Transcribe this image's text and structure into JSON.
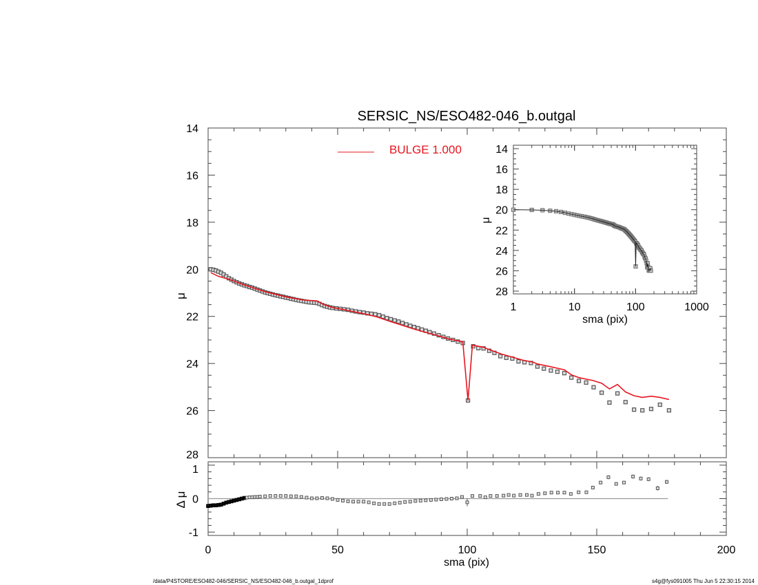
{
  "footer": {
    "left": "/data/P4STORE/ESO482-046/SERSIC_NS/ESO482-046_b.outgal_1dprof",
    "right": "s4g@fys091005  Thu Jun  5 22:30:15 2014"
  },
  "chart_data": [
    {
      "id": "main",
      "type": "scatter",
      "title": "SERSIC_NS/ESO482-046_b.outgal",
      "xlabel": "",
      "ylabel": "μ",
      "xlim": [
        0,
        200
      ],
      "ylim": [
        14,
        28
      ],
      "y_inverted": true,
      "xticks": [
        0,
        50,
        100,
        150,
        200
      ],
      "yticks": [
        14,
        16,
        18,
        20,
        22,
        24,
        26,
        28
      ],
      "legend": {
        "position": "top-center",
        "entries": [
          {
            "label": "BULGE  1.000",
            "color": "#e8141e"
          }
        ]
      },
      "colors": {
        "data": "#555555",
        "model": "#e8141e"
      },
      "series": [
        {
          "kind": "observed-points",
          "points": [
            [
              1,
              20.0
            ],
            [
              2,
              20.02
            ],
            [
              3,
              20.05
            ],
            [
              4,
              20.1
            ],
            [
              5,
              20.15
            ],
            [
              6,
              20.22
            ],
            [
              7,
              20.3
            ],
            [
              8,
              20.38
            ],
            [
              9,
              20.44
            ],
            [
              10,
              20.5
            ],
            [
              11,
              20.55
            ],
            [
              12,
              20.6
            ],
            [
              13,
              20.64
            ],
            [
              14,
              20.68
            ],
            [
              15,
              20.71
            ],
            [
              16,
              20.75
            ],
            [
              17,
              20.78
            ],
            [
              18,
              20.82
            ],
            [
              19,
              20.86
            ],
            [
              20,
              20.9
            ],
            [
              21,
              20.94
            ],
            [
              22,
              20.98
            ],
            [
              23,
              21.01
            ],
            [
              24,
              21.04
            ],
            [
              25,
              21.07
            ],
            [
              26,
              21.1
            ],
            [
              27,
              21.12
            ],
            [
              28,
              21.15
            ],
            [
              29,
              21.17
            ],
            [
              30,
              21.2
            ],
            [
              31,
              21.22
            ],
            [
              32,
              21.25
            ],
            [
              33,
              21.27
            ],
            [
              34,
              21.3
            ],
            [
              35,
              21.32
            ],
            [
              36,
              21.34
            ],
            [
              37,
              21.36
            ],
            [
              38,
              21.38
            ],
            [
              39,
              21.4
            ],
            [
              40,
              21.41
            ],
            [
              41,
              21.42
            ],
            [
              42,
              21.43
            ],
            [
              43,
              21.47
            ],
            [
              44,
              21.52
            ],
            [
              45,
              21.56
            ],
            [
              46,
              21.59
            ],
            [
              47,
              21.62
            ],
            [
              48,
              21.64
            ],
            [
              49.5,
              21.66
            ],
            [
              51,
              21.68
            ],
            [
              52.5,
              21.7
            ],
            [
              54,
              21.72
            ],
            [
              55.5,
              21.76
            ],
            [
              57,
              21.79
            ],
            [
              58.5,
              21.82
            ],
            [
              60,
              21.84
            ],
            [
              61.5,
              21.87
            ],
            [
              63,
              21.89
            ],
            [
              64.5,
              21.91
            ],
            [
              66,
              21.95
            ],
            [
              67.5,
              22.01
            ],
            [
              69,
              22.07
            ],
            [
              70.5,
              22.12
            ],
            [
              72,
              22.17
            ],
            [
              73.5,
              22.22
            ],
            [
              75,
              22.28
            ],
            [
              76.5,
              22.34
            ],
            [
              78,
              22.4
            ],
            [
              79.5,
              22.45
            ],
            [
              81,
              22.5
            ],
            [
              82.5,
              22.56
            ],
            [
              84,
              22.61
            ],
            [
              85.5,
              22.67
            ],
            [
              87.2,
              22.73
            ],
            [
              89,
              22.8
            ],
            [
              90.8,
              22.87
            ],
            [
              92.6,
              22.94
            ],
            [
              94.5,
              23.0
            ],
            [
              96.4,
              23.07
            ],
            [
              98.3,
              23.13
            ],
            [
              100.3,
              25.57
            ],
            [
              102.3,
              23.27
            ],
            [
              104.3,
              23.35
            ],
            [
              106.3,
              23.36
            ],
            [
              108.5,
              23.46
            ],
            [
              110.5,
              23.55
            ],
            [
              112.8,
              23.69
            ],
            [
              115.1,
              23.76
            ],
            [
              117.4,
              23.79
            ],
            [
              119.8,
              23.91
            ],
            [
              122.1,
              23.95
            ],
            [
              124.6,
              23.98
            ],
            [
              127.1,
              24.13
            ],
            [
              129.6,
              24.22
            ],
            [
              132.3,
              24.3
            ],
            [
              134.8,
              24.35
            ],
            [
              137.5,
              24.41
            ],
            [
              140.2,
              24.6
            ],
            [
              143.1,
              24.74
            ],
            [
              145.9,
              24.81
            ],
            [
              148.8,
              25.01
            ],
            [
              151.9,
              25.24
            ],
            [
              154.9,
              25.66
            ],
            [
              158,
              25.27
            ],
            [
              161.1,
              25.64
            ],
            [
              164.4,
              25.96
            ],
            [
              167.6,
              25.99
            ],
            [
              171,
              25.93
            ],
            [
              174.4,
              25.75
            ],
            [
              177.9,
              25.99
            ]
          ]
        },
        {
          "name": "BULGE  1.000",
          "kind": "model-line",
          "points": [
            [
              1,
              20.14
            ],
            [
              4,
              20.3
            ],
            [
              8.3,
              20.43
            ],
            [
              12.8,
              20.62
            ],
            [
              17.2,
              20.78
            ],
            [
              21.6,
              20.94
            ],
            [
              26.1,
              21.06
            ],
            [
              30.5,
              21.18
            ],
            [
              36.6,
              21.3
            ],
            [
              40,
              21.33
            ],
            [
              42,
              21.34
            ],
            [
              44.7,
              21.5
            ],
            [
              48,
              21.62
            ],
            [
              52.7,
              21.72
            ],
            [
              57,
              21.82
            ],
            [
              61.5,
              21.92
            ],
            [
              65.1,
              22.02
            ],
            [
              70.4,
              22.22
            ],
            [
              75,
              22.38
            ],
            [
              79.3,
              22.53
            ],
            [
              84,
              22.68
            ],
            [
              87.7,
              22.79
            ],
            [
              93,
              22.96
            ],
            [
              98.3,
              23.08
            ],
            [
              100.3,
              25.57
            ],
            [
              102,
              23.22
            ],
            [
              106.3,
              23.31
            ],
            [
              108.5,
              23.41
            ],
            [
              113.3,
              23.6
            ],
            [
              117.4,
              23.73
            ],
            [
              121.8,
              23.87
            ],
            [
              125.4,
              23.94
            ],
            [
              127.1,
              24.02
            ],
            [
              132.3,
              24.14
            ],
            [
              137.5,
              24.27
            ],
            [
              140.2,
              24.48
            ],
            [
              143.1,
              24.6
            ],
            [
              148.4,
              24.72
            ],
            [
              151.9,
              24.84
            ],
            [
              154.9,
              25.08
            ],
            [
              158,
              24.89
            ],
            [
              161.1,
              25.21
            ],
            [
              164.4,
              25.37
            ],
            [
              167.6,
              25.44
            ],
            [
              171,
              25.39
            ],
            [
              174.4,
              25.44
            ],
            [
              177.9,
              25.53
            ]
          ]
        }
      ]
    },
    {
      "id": "residual",
      "type": "scatter",
      "xlabel": "sma (pix)",
      "ylabel": "Δ μ",
      "xlim": [
        0,
        200
      ],
      "ylim": [
        -1.1,
        1.1
      ],
      "xticks": [
        0,
        50,
        100,
        150,
        200
      ],
      "yticks": [
        -1,
        0,
        1
      ],
      "reference_line": 0,
      "points": [
        [
          0,
          -0.22,
          0
        ],
        [
          1,
          -0.21,
          0
        ],
        [
          2,
          -0.2,
          0
        ],
        [
          3,
          -0.2,
          0
        ],
        [
          4,
          -0.19,
          0
        ],
        [
          5,
          -0.18,
          0
        ],
        [
          6,
          -0.15,
          0
        ],
        [
          7,
          -0.12,
          0
        ],
        [
          8,
          -0.1,
          0
        ],
        [
          9,
          -0.08,
          0
        ],
        [
          10,
          -0.06,
          0
        ],
        [
          11,
          -0.04,
          0
        ],
        [
          12,
          -0.02,
          0
        ],
        [
          13,
          0.0,
          0
        ],
        [
          14,
          0.02,
          0
        ],
        [
          15,
          0.03,
          0
        ],
        [
          16,
          0.04,
          0
        ],
        [
          17,
          0.04,
          0
        ],
        [
          18,
          0.05,
          0
        ],
        [
          19,
          0.05,
          0
        ],
        [
          20,
          0.06,
          0
        ],
        [
          22,
          0.07,
          0
        ],
        [
          24,
          0.08,
          0
        ],
        [
          26,
          0.08,
          0
        ],
        [
          28,
          0.08,
          0
        ],
        [
          30,
          0.08,
          0
        ],
        [
          32,
          0.07,
          0
        ],
        [
          34,
          0.07,
          0
        ],
        [
          36,
          0.05,
          0
        ],
        [
          38,
          0.03,
          0
        ],
        [
          40,
          0.01,
          0
        ],
        [
          42,
          0.01,
          0
        ],
        [
          44,
          0.02,
          0
        ],
        [
          46,
          0.01,
          0
        ],
        [
          48,
          -0.01,
          0
        ],
        [
          50,
          -0.04,
          0
        ],
        [
          52,
          -0.06,
          0
        ],
        [
          54,
          -0.08,
          0
        ],
        [
          56,
          -0.09,
          0
        ],
        [
          58,
          -0.09,
          0
        ],
        [
          60,
          -0.09,
          0
        ],
        [
          62,
          -0.11,
          0
        ],
        [
          64,
          -0.14,
          0
        ],
        [
          66,
          -0.16,
          0
        ],
        [
          68,
          -0.16,
          0
        ],
        [
          70,
          -0.16,
          0
        ],
        [
          72,
          -0.14,
          0
        ],
        [
          74,
          -0.12,
          0
        ],
        [
          76,
          -0.1,
          0
        ],
        [
          78,
          -0.09,
          0
        ],
        [
          80,
          -0.07,
          0
        ],
        [
          82,
          -0.06,
          0
        ],
        [
          84,
          -0.05,
          0
        ],
        [
          86,
          -0.04,
          0
        ],
        [
          88,
          -0.03,
          0
        ],
        [
          90,
          -0.02,
          0
        ],
        [
          92,
          -0.01,
          0
        ],
        [
          94,
          0.0,
          0
        ],
        [
          96,
          0.01,
          0
        ],
        [
          98,
          0.05,
          0
        ],
        [
          100,
          -0.11,
          0.12
        ],
        [
          102,
          0.08,
          0.02
        ],
        [
          105,
          0.08,
          0.02
        ],
        [
          107,
          0.04,
          0.02
        ],
        [
          109,
          0.08,
          0.02
        ],
        [
          111.5,
          0.08,
          0.02
        ],
        [
          114,
          0.09,
          0.02
        ],
        [
          116,
          0.11,
          0.02
        ],
        [
          118,
          0.09,
          0.02
        ],
        [
          120.5,
          0.11,
          0.02
        ],
        [
          123,
          0.11,
          0.02
        ],
        [
          125,
          0.09,
          0.02
        ],
        [
          127.5,
          0.14,
          0.02
        ],
        [
          130,
          0.16,
          0.02
        ],
        [
          132.5,
          0.18,
          0.02
        ],
        [
          135,
          0.18,
          0.02
        ],
        [
          137.5,
          0.18,
          0.02
        ],
        [
          140,
          0.14,
          0.03
        ],
        [
          143,
          0.19,
          0.03
        ],
        [
          146,
          0.19,
          0.03
        ],
        [
          148.5,
          0.33,
          0.04
        ],
        [
          151.5,
          0.48,
          0.05
        ],
        [
          154.5,
          0.64,
          0.06
        ],
        [
          157.5,
          0.44,
          0.05
        ],
        [
          160.5,
          0.48,
          0.05
        ],
        [
          164,
          0.66,
          0.06
        ],
        [
          167,
          0.6,
          0.06
        ],
        [
          170,
          0.58,
          0.06
        ],
        [
          173.5,
          0.31,
          0.07
        ],
        [
          177,
          0.5,
          0.06
        ]
      ]
    },
    {
      "id": "inset",
      "type": "scatter",
      "xlabel": "sma (pix)",
      "ylabel": "μ",
      "xscale": "log",
      "xlim": [
        1,
        1000
      ],
      "ylim": [
        14,
        28
      ],
      "y_inverted": true,
      "xticks": [
        1,
        10,
        100,
        1000
      ],
      "yticks": [
        14,
        16,
        18,
        20,
        22,
        24,
        26,
        28
      ],
      "source": "same observed points and model as main panel"
    }
  ]
}
